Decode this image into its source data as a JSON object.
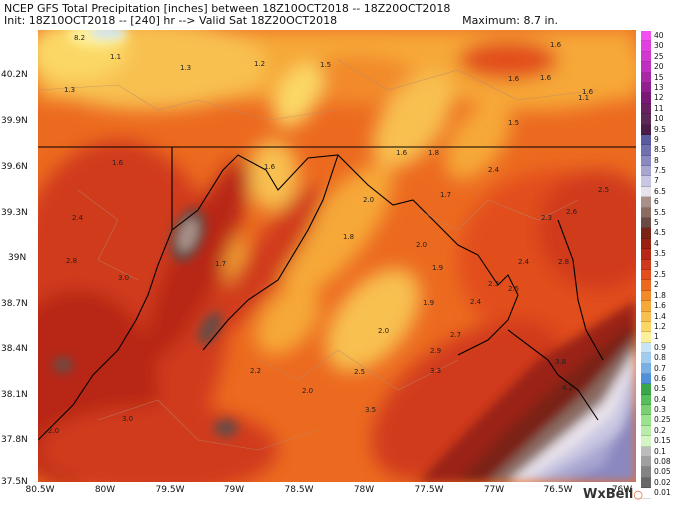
{
  "header": {
    "line1": "NCEP GFS Total Precipitation [inches] between 18Z10OCT2018 -- 18Z20OCT2018",
    "line2": "Init: 18Z10OCT2018 -- [240] hr --> Valid Sat 18Z20OCT2018",
    "maximum": "Maximum: 8.7 in."
  },
  "axes": {
    "lat_labels": [
      "40.2N",
      "39.9N",
      "39.6N",
      "39.3N",
      "39N",
      "38.7N",
      "38.4N",
      "38.1N",
      "37.8N",
      "37.5N"
    ],
    "lon_labels": [
      "80.5W",
      "80W",
      "79.5W",
      "79W",
      "78.5W",
      "78W",
      "77.5W",
      "77W",
      "76.5W",
      "76W"
    ]
  },
  "colorbar": {
    "labels": [
      "40",
      "30",
      "25",
      "20",
      "15",
      "13",
      "12",
      "11",
      "10",
      "9.5",
      "9",
      "8.5",
      "8",
      "7.5",
      "7",
      "6.5",
      "6",
      "5.5",
      "5",
      "4.5",
      "4",
      "3.5",
      "3",
      "2.5",
      "2",
      "1.8",
      "1.6",
      "1.4",
      "1.2",
      "1",
      "0.9",
      "0.8",
      "0.7",
      "0.6",
      "0.5",
      "0.4",
      "0.3",
      "0.25",
      "0.2",
      "0.15",
      "0.1",
      "0.08",
      "0.05",
      "0.02",
      "0.01"
    ],
    "colors": [
      "#f050f0",
      "#e040e0",
      "#d038d0",
      "#c030c0",
      "#a828a8",
      "#902090",
      "#7a1878",
      "#682060",
      "#5c2858",
      "#4c1c48",
      "#5a5aa0",
      "#7070b0",
      "#8a88c0",
      "#a8a6d0",
      "#c8c6e2",
      "#e8e2ea",
      "#a89088",
      "#8a6c62",
      "#6a4c44",
      "#7a2418",
      "#9a2212",
      "#b82816",
      "#d03a1c",
      "#e24e1e",
      "#ec6a20",
      "#f28a2a",
      "#f6a838",
      "#f8c050",
      "#fbd866",
      "#fdf09a",
      "#c8e4f8",
      "#a0ccf0",
      "#78b0e6",
      "#5090d8",
      "#3aa64a",
      "#56be5a",
      "#78d070",
      "#9ae28c",
      "#b8eca8",
      "#d4f4c4",
      "#bcbcbc",
      "#a0a0a0",
      "#848484",
      "#686868",
      "#ffffff"
    ]
  },
  "values": [
    {
      "t": "8.2"
    },
    {
      "t": "1.1"
    },
    {
      "t": "1.3"
    },
    {
      "t": "1.2"
    },
    {
      "t": "1.5"
    },
    {
      "t": "1.6"
    },
    {
      "t": "1.6"
    },
    {
      "t": "1.6"
    },
    {
      "t": "1.6"
    },
    {
      "t": "1.3"
    },
    {
      "t": "1.1"
    },
    {
      "t": "1.5"
    },
    {
      "t": "1.6"
    },
    {
      "t": "1.6"
    },
    {
      "t": "1.8"
    },
    {
      "t": "2.5"
    },
    {
      "t": "1.6"
    },
    {
      "t": "2.0"
    },
    {
      "t": "1.7"
    },
    {
      "t": "2.4"
    },
    {
      "t": "2.3"
    },
    {
      "t": "2.6"
    },
    {
      "t": "1.8"
    },
    {
      "t": "2.4"
    },
    {
      "t": "2.0"
    },
    {
      "t": "2.8"
    },
    {
      "t": "3.0"
    },
    {
      "t": "1.7"
    },
    {
      "t": "1.9"
    },
    {
      "t": "2.4"
    },
    {
      "t": "2.8"
    },
    {
      "t": "2.3"
    },
    {
      "t": "2.5"
    },
    {
      "t": "1.9"
    },
    {
      "t": "2.4"
    },
    {
      "t": "2.0"
    },
    {
      "t": "2.7"
    },
    {
      "t": "2.9"
    },
    {
      "t": "3.8"
    },
    {
      "t": "2.2"
    },
    {
      "t": "2.5"
    },
    {
      "t": "3.3"
    },
    {
      "t": "2.0"
    },
    {
      "t": "4.2"
    },
    {
      "t": "3.5"
    },
    {
      "t": "3.0"
    },
    {
      "t": "2.0"
    }
  ],
  "branding": {
    "name": "WxBell"
  }
}
